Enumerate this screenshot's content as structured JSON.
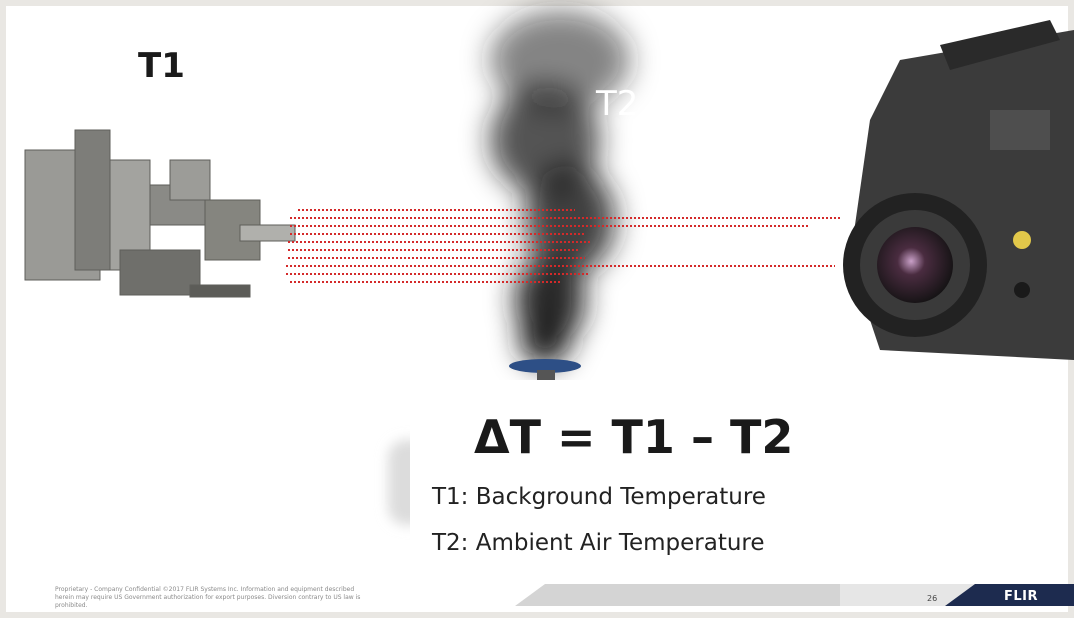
{
  "slide": {
    "t1_label": "T1",
    "t2_label": "T2",
    "equation": "ΔT = T1 – T2",
    "legend": [
      "T1: Background Temperature",
      "T2: Ambient Air Temperature"
    ],
    "footer": {
      "disclaimer": "Proprietary - Company Confidential ©2017 FLIR Systems Inc. Information and equipment described herein may require US Government authorization for export purposes. Diversion contrary to US law is prohibited.",
      "page_number": "26",
      "logo": "FLIR"
    }
  }
}
